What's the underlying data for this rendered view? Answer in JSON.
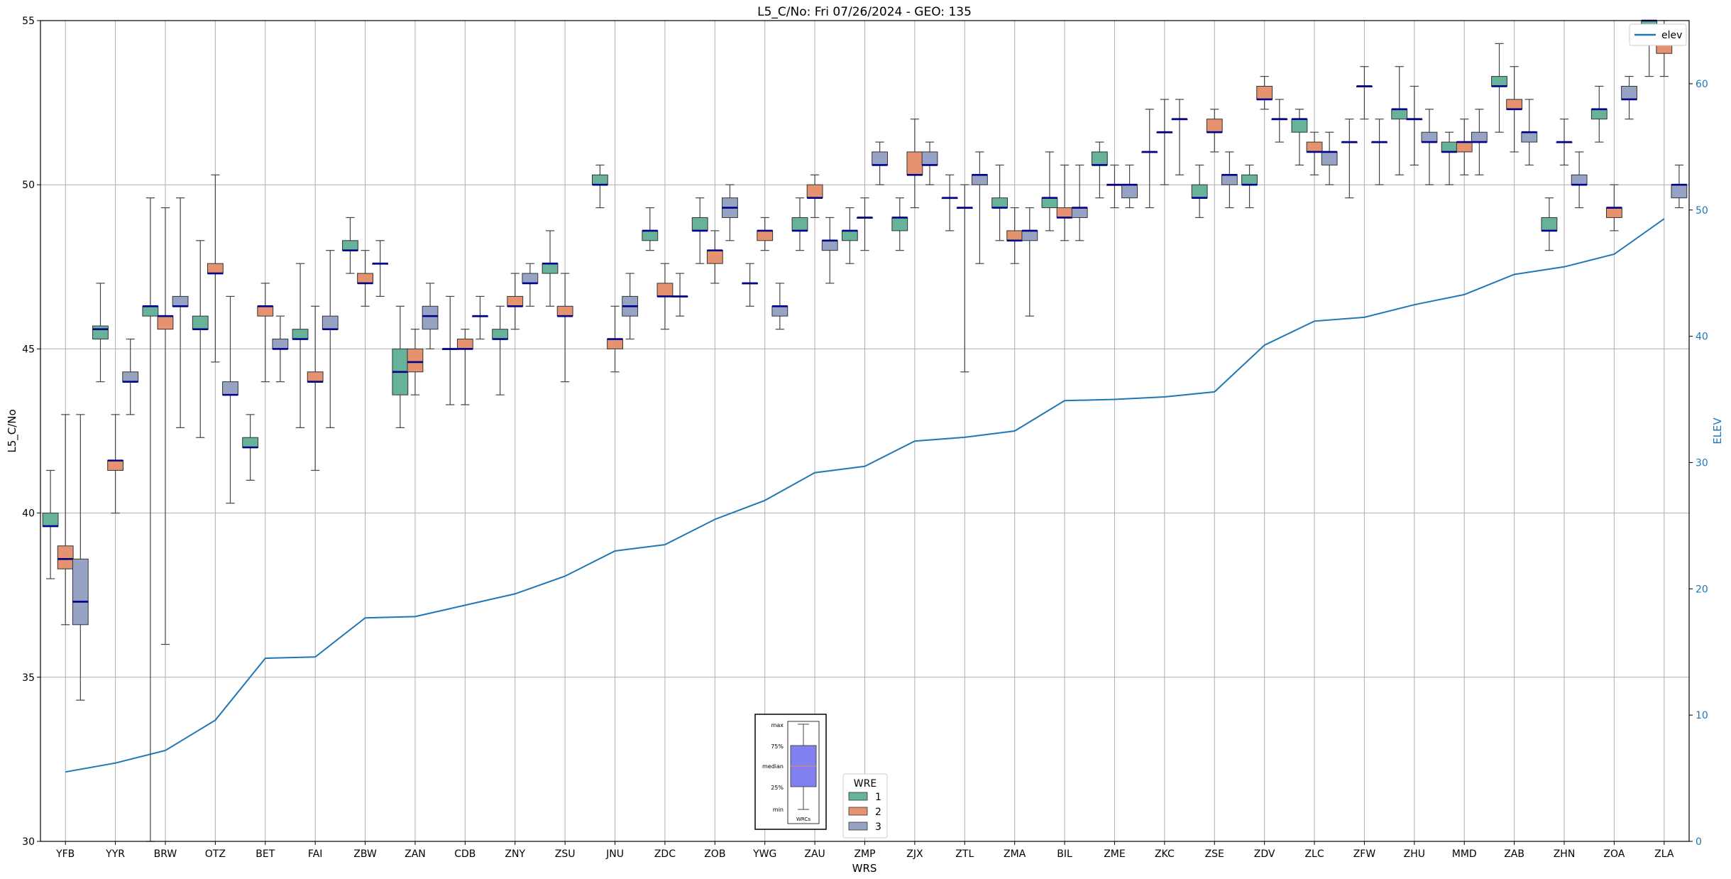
{
  "chart_data": {
    "type": "boxplot",
    "title": "L5_C/No: Fri 07/26/2024 - GEO: 135",
    "xlabel": "WRS",
    "ylabel": "L5_C/No",
    "ylim": [
      30,
      55
    ],
    "yticks": [
      30,
      35,
      40,
      45,
      50,
      55
    ],
    "y2label": "ELEV",
    "y2lim": [
      0,
      65
    ],
    "y2ticks": [
      0,
      10,
      20,
      30,
      40,
      50,
      60
    ],
    "grid": true,
    "categories": [
      "YFB",
      "YYR",
      "BRW",
      "OTZ",
      "BET",
      "FAI",
      "ZBW",
      "ZAN",
      "CDB",
      "ZNY",
      "ZSU",
      "JNU",
      "ZDC",
      "ZOB",
      "YWG",
      "ZAU",
      "ZMP",
      "ZJX",
      "ZTL",
      "ZMA",
      "BIL",
      "ZME",
      "ZKC",
      "ZSE",
      "ZDV",
      "ZLC",
      "ZFW",
      "ZHU",
      "MMD",
      "ZAB",
      "ZHN",
      "ZOA",
      "ZLA"
    ],
    "wre_colors": {
      "1": "#66b399",
      "2": "#e59270",
      "3": "#97a3c4"
    },
    "boxes": [
      {
        "cat": "YFB",
        "wre": 1,
        "min": 38.0,
        "q1": 39.6,
        "med": 39.6,
        "q3": 40.0,
        "max": 41.3
      },
      {
        "cat": "YFB",
        "wre": 2,
        "min": 36.6,
        "q1": 38.3,
        "med": 38.6,
        "q3": 39.0,
        "max": 43.0
      },
      {
        "cat": "YFB",
        "wre": 3,
        "min": 34.3,
        "q1": 36.6,
        "med": 37.3,
        "q3": 38.6,
        "max": 43.0
      },
      {
        "cat": "YYR",
        "wre": 1,
        "min": 44.0,
        "q1": 45.3,
        "med": 45.6,
        "q3": 45.7,
        "max": 47.0
      },
      {
        "cat": "YYR",
        "wre": 2,
        "min": 40.0,
        "q1": 41.3,
        "med": 41.6,
        "q3": 41.6,
        "max": 43.0
      },
      {
        "cat": "YYR",
        "wre": 3,
        "min": 43.0,
        "q1": 44.0,
        "med": 44.0,
        "q3": 44.3,
        "max": 45.3
      },
      {
        "cat": "BRW",
        "wre": 1,
        "min": 30.0,
        "q1": 46.0,
        "med": 46.3,
        "q3": 46.3,
        "max": 49.6
      },
      {
        "cat": "BRW",
        "wre": 2,
        "min": 36.0,
        "q1": 45.6,
        "med": 46.0,
        "q3": 46.0,
        "max": 49.3
      },
      {
        "cat": "BRW",
        "wre": 3,
        "min": 42.6,
        "q1": 46.3,
        "med": 46.3,
        "q3": 46.6,
        "max": 49.6
      },
      {
        "cat": "OTZ",
        "wre": 1,
        "min": 42.3,
        "q1": 45.6,
        "med": 45.6,
        "q3": 46.0,
        "max": 48.3
      },
      {
        "cat": "OTZ",
        "wre": 2,
        "min": 44.6,
        "q1": 47.3,
        "med": 47.3,
        "q3": 47.6,
        "max": 50.3
      },
      {
        "cat": "OTZ",
        "wre": 3,
        "min": 40.3,
        "q1": 43.6,
        "med": 43.6,
        "q3": 44.0,
        "max": 46.6
      },
      {
        "cat": "BET",
        "wre": 1,
        "min": 41.0,
        "q1": 42.0,
        "med": 42.0,
        "q3": 42.3,
        "max": 43.0
      },
      {
        "cat": "BET",
        "wre": 2,
        "min": 44.0,
        "q1": 46.0,
        "med": 46.3,
        "q3": 46.3,
        "max": 47.0
      },
      {
        "cat": "BET",
        "wre": 3,
        "min": 44.0,
        "q1": 45.0,
        "med": 45.0,
        "q3": 45.3,
        "max": 46.0
      },
      {
        "cat": "FAI",
        "wre": 1,
        "min": 42.6,
        "q1": 45.3,
        "med": 45.3,
        "q3": 45.6,
        "max": 47.6
      },
      {
        "cat": "FAI",
        "wre": 2,
        "min": 41.3,
        "q1": 44.0,
        "med": 44.0,
        "q3": 44.3,
        "max": 46.3
      },
      {
        "cat": "FAI",
        "wre": 3,
        "min": 42.6,
        "q1": 45.6,
        "med": 45.6,
        "q3": 46.0,
        "max": 48.0
      },
      {
        "cat": "ZBW",
        "wre": 1,
        "min": 47.3,
        "q1": 48.0,
        "med": 48.0,
        "q3": 48.3,
        "max": 49.0
      },
      {
        "cat": "ZBW",
        "wre": 2,
        "min": 46.3,
        "q1": 47.0,
        "med": 47.0,
        "q3": 47.3,
        "max": 48.0
      },
      {
        "cat": "ZBW",
        "wre": 3,
        "min": 46.6,
        "q1": 47.6,
        "med": 47.6,
        "q3": 47.6,
        "max": 48.3
      },
      {
        "cat": "ZAN",
        "wre": 1,
        "min": 42.6,
        "q1": 43.6,
        "med": 44.3,
        "q3": 45.0,
        "max": 46.3
      },
      {
        "cat": "ZAN",
        "wre": 2,
        "min": 43.6,
        "q1": 44.3,
        "med": 44.6,
        "q3": 45.0,
        "max": 45.6
      },
      {
        "cat": "ZAN",
        "wre": 3,
        "min": 45.0,
        "q1": 45.6,
        "med": 46.0,
        "q3": 46.3,
        "max": 47.0
      },
      {
        "cat": "CDB",
        "wre": 1,
        "min": 43.3,
        "q1": 45.0,
        "med": 45.0,
        "q3": 45.0,
        "max": 46.6
      },
      {
        "cat": "CDB",
        "wre": 2,
        "min": 43.3,
        "q1": 45.0,
        "med": 45.0,
        "q3": 45.3,
        "max": 45.6
      },
      {
        "cat": "CDB",
        "wre": 3,
        "min": 45.3,
        "q1": 46.0,
        "med": 46.0,
        "q3": 46.0,
        "max": 46.6
      },
      {
        "cat": "ZNY",
        "wre": 1,
        "min": 43.6,
        "q1": 45.3,
        "med": 45.3,
        "q3": 45.6,
        "max": 46.3
      },
      {
        "cat": "ZNY",
        "wre": 2,
        "min": 45.6,
        "q1": 46.3,
        "med": 46.3,
        "q3": 46.6,
        "max": 47.3
      },
      {
        "cat": "ZNY",
        "wre": 3,
        "min": 46.3,
        "q1": 47.0,
        "med": 47.0,
        "q3": 47.3,
        "max": 47.6
      },
      {
        "cat": "ZSU",
        "wre": 1,
        "min": 46.3,
        "q1": 47.3,
        "med": 47.6,
        "q3": 47.6,
        "max": 48.6
      },
      {
        "cat": "ZSU",
        "wre": 2,
        "min": 44.0,
        "q1": 46.0,
        "med": 46.0,
        "q3": 46.3,
        "max": 47.3
      },
      {
        "cat": "JNU",
        "wre": 1,
        "min": 49.3,
        "q1": 50.0,
        "med": 50.0,
        "q3": 50.3,
        "max": 50.6
      },
      {
        "cat": "JNU",
        "wre": 2,
        "min": 44.3,
        "q1": 45.0,
        "med": 45.3,
        "q3": 45.3,
        "max": 46.3
      },
      {
        "cat": "JNU",
        "wre": 3,
        "min": 45.3,
        "q1": 46.0,
        "med": 46.3,
        "q3": 46.6,
        "max": 47.3
      },
      {
        "cat": "ZDC",
        "wre": 1,
        "min": 48.0,
        "q1": 48.3,
        "med": 48.6,
        "q3": 48.6,
        "max": 49.3
      },
      {
        "cat": "ZDC",
        "wre": 2,
        "min": 45.6,
        "q1": 46.6,
        "med": 46.6,
        "q3": 47.0,
        "max": 47.6
      },
      {
        "cat": "ZDC",
        "wre": 3,
        "min": 46.0,
        "q1": 46.6,
        "med": 46.6,
        "q3": 46.6,
        "max": 47.3
      },
      {
        "cat": "ZOB",
        "wre": 1,
        "min": 47.6,
        "q1": 48.6,
        "med": 48.6,
        "q3": 49.0,
        "max": 49.6
      },
      {
        "cat": "ZOB",
        "wre": 2,
        "min": 47.0,
        "q1": 47.6,
        "med": 48.0,
        "q3": 48.0,
        "max": 48.6
      },
      {
        "cat": "ZOB",
        "wre": 3,
        "min": 48.3,
        "q1": 49.0,
        "med": 49.3,
        "q3": 49.6,
        "max": 50.0
      },
      {
        "cat": "YWG",
        "wre": 1,
        "min": 46.3,
        "q1": 47.0,
        "med": 47.0,
        "q3": 47.0,
        "max": 47.6
      },
      {
        "cat": "YWG",
        "wre": 2,
        "min": 48.0,
        "q1": 48.3,
        "med": 48.6,
        "q3": 48.6,
        "max": 49.0
      },
      {
        "cat": "YWG",
        "wre": 3,
        "min": 45.6,
        "q1": 46.0,
        "med": 46.3,
        "q3": 46.3,
        "max": 47.0
      },
      {
        "cat": "ZAU",
        "wre": 1,
        "min": 48.0,
        "q1": 48.6,
        "med": 48.6,
        "q3": 49.0,
        "max": 49.6
      },
      {
        "cat": "ZAU",
        "wre": 2,
        "min": 49.0,
        "q1": 49.6,
        "med": 49.6,
        "q3": 50.0,
        "max": 50.3
      },
      {
        "cat": "ZAU",
        "wre": 3,
        "min": 47.0,
        "q1": 48.0,
        "med": 48.3,
        "q3": 48.3,
        "max": 49.0
      },
      {
        "cat": "ZMP",
        "wre": 1,
        "min": 47.6,
        "q1": 48.3,
        "med": 48.6,
        "q3": 48.6,
        "max": 49.3
      },
      {
        "cat": "ZMP",
        "wre": 2,
        "min": 48.0,
        "q1": 49.0,
        "med": 49.0,
        "q3": 49.0,
        "max": 49.6
      },
      {
        "cat": "ZMP",
        "wre": 3,
        "min": 50.0,
        "q1": 50.6,
        "med": 50.6,
        "q3": 51.0,
        "max": 51.3
      },
      {
        "cat": "ZJX",
        "wre": 1,
        "min": 48.0,
        "q1": 48.6,
        "med": 49.0,
        "q3": 49.0,
        "max": 49.6
      },
      {
        "cat": "ZJX",
        "wre": 2,
        "min": 49.3,
        "q1": 50.3,
        "med": 50.3,
        "q3": 51.0,
        "max": 52.0
      },
      {
        "cat": "ZJX",
        "wre": 3,
        "min": 50.0,
        "q1": 50.6,
        "med": 50.6,
        "q3": 51.0,
        "max": 51.3
      },
      {
        "cat": "ZTL",
        "wre": 1,
        "min": 48.6,
        "q1": 49.6,
        "med": 49.6,
        "q3": 49.6,
        "max": 50.3
      },
      {
        "cat": "ZTL",
        "wre": 2,
        "min": 44.3,
        "q1": 49.3,
        "med": 49.3,
        "q3": 49.3,
        "max": 50.0
      },
      {
        "cat": "ZTL",
        "wre": 3,
        "min": 47.6,
        "q1": 50.0,
        "med": 50.3,
        "q3": 50.3,
        "max": 51.0
      },
      {
        "cat": "ZMA",
        "wre": 1,
        "min": 48.3,
        "q1": 49.3,
        "med": 49.3,
        "q3": 49.6,
        "max": 50.6
      },
      {
        "cat": "ZMA",
        "wre": 2,
        "min": 47.6,
        "q1": 48.3,
        "med": 48.3,
        "q3": 48.6,
        "max": 49.3
      },
      {
        "cat": "ZMA",
        "wre": 3,
        "min": 46.0,
        "q1": 48.3,
        "med": 48.6,
        "q3": 48.6,
        "max": 49.3
      },
      {
        "cat": "BIL",
        "wre": 1,
        "min": 48.6,
        "q1": 49.3,
        "med": 49.6,
        "q3": 49.6,
        "max": 51.0
      },
      {
        "cat": "BIL",
        "wre": 2,
        "min": 48.3,
        "q1": 49.0,
        "med": 49.0,
        "q3": 49.3,
        "max": 50.6
      },
      {
        "cat": "BIL",
        "wre": 3,
        "min": 48.3,
        "q1": 49.0,
        "med": 49.3,
        "q3": 49.3,
        "max": 50.6
      },
      {
        "cat": "ZME",
        "wre": 1,
        "min": 49.6,
        "q1": 50.6,
        "med": 50.6,
        "q3": 51.0,
        "max": 51.3
      },
      {
        "cat": "ZME",
        "wre": 2,
        "min": 49.3,
        "q1": 50.0,
        "med": 50.0,
        "q3": 50.0,
        "max": 50.6
      },
      {
        "cat": "ZME",
        "wre": 3,
        "min": 49.3,
        "q1": 49.6,
        "med": 50.0,
        "q3": 50.0,
        "max": 50.6
      },
      {
        "cat": "ZKC",
        "wre": 1,
        "min": 49.3,
        "q1": 51.0,
        "med": 51.0,
        "q3": 51.0,
        "max": 52.3
      },
      {
        "cat": "ZKC",
        "wre": 2,
        "min": 50.0,
        "q1": 51.6,
        "med": 51.6,
        "q3": 51.6,
        "max": 52.6
      },
      {
        "cat": "ZKC",
        "wre": 3,
        "min": 50.3,
        "q1": 52.0,
        "med": 52.0,
        "q3": 52.0,
        "max": 52.6
      },
      {
        "cat": "ZSE",
        "wre": 1,
        "min": 49.0,
        "q1": 49.6,
        "med": 49.6,
        "q3": 50.0,
        "max": 50.6
      },
      {
        "cat": "ZSE",
        "wre": 2,
        "min": 51.0,
        "q1": 51.6,
        "med": 51.6,
        "q3": 52.0,
        "max": 52.3
      },
      {
        "cat": "ZSE",
        "wre": 3,
        "min": 49.3,
        "q1": 50.0,
        "med": 50.3,
        "q3": 50.3,
        "max": 51.0
      },
      {
        "cat": "ZDV",
        "wre": 1,
        "min": 49.3,
        "q1": 50.0,
        "med": 50.0,
        "q3": 50.3,
        "max": 50.6
      },
      {
        "cat": "ZDV",
        "wre": 2,
        "min": 52.3,
        "q1": 52.6,
        "med": 52.6,
        "q3": 53.0,
        "max": 53.3
      },
      {
        "cat": "ZDV",
        "wre": 3,
        "min": 51.3,
        "q1": 52.0,
        "med": 52.0,
        "q3": 52.0,
        "max": 52.6
      },
      {
        "cat": "ZLC",
        "wre": 1,
        "min": 50.6,
        "q1": 51.6,
        "med": 52.0,
        "q3": 52.0,
        "max": 52.3
      },
      {
        "cat": "ZLC",
        "wre": 2,
        "min": 50.3,
        "q1": 51.0,
        "med": 51.0,
        "q3": 51.3,
        "max": 51.6
      },
      {
        "cat": "ZLC",
        "wre": 3,
        "min": 50.0,
        "q1": 50.6,
        "med": 51.0,
        "q3": 51.0,
        "max": 51.6
      },
      {
        "cat": "ZFW",
        "wre": 1,
        "min": 49.6,
        "q1": 51.3,
        "med": 51.3,
        "q3": 51.3,
        "max": 52.0
      },
      {
        "cat": "ZFW",
        "wre": 2,
        "min": 52.0,
        "q1": 53.0,
        "med": 53.0,
        "q3": 53.0,
        "max": 53.6
      },
      {
        "cat": "ZFW",
        "wre": 3,
        "min": 50.0,
        "q1": 51.3,
        "med": 51.3,
        "q3": 51.3,
        "max": 52.0
      },
      {
        "cat": "ZHU",
        "wre": 1,
        "min": 50.3,
        "q1": 52.0,
        "med": 52.3,
        "q3": 52.3,
        "max": 53.6
      },
      {
        "cat": "ZHU",
        "wre": 2,
        "min": 50.6,
        "q1": 52.0,
        "med": 52.0,
        "q3": 52.0,
        "max": 53.0
      },
      {
        "cat": "ZHU",
        "wre": 3,
        "min": 50.0,
        "q1": 51.3,
        "med": 51.3,
        "q3": 51.6,
        "max": 52.3
      },
      {
        "cat": "MMD",
        "wre": 1,
        "min": 50.0,
        "q1": 51.0,
        "med": 51.0,
        "q3": 51.3,
        "max": 51.6
      },
      {
        "cat": "MMD",
        "wre": 2,
        "min": 50.3,
        "q1": 51.0,
        "med": 51.3,
        "q3": 51.3,
        "max": 52.0
      },
      {
        "cat": "MMD",
        "wre": 3,
        "min": 50.3,
        "q1": 51.3,
        "med": 51.3,
        "q3": 51.6,
        "max": 52.3
      },
      {
        "cat": "ZAB",
        "wre": 1,
        "min": 51.6,
        "q1": 53.0,
        "med": 53.0,
        "q3": 53.3,
        "max": 54.3
      },
      {
        "cat": "ZAB",
        "wre": 2,
        "min": 51.0,
        "q1": 52.3,
        "med": 52.3,
        "q3": 52.6,
        "max": 53.6
      },
      {
        "cat": "ZAB",
        "wre": 3,
        "min": 50.6,
        "q1": 51.3,
        "med": 51.6,
        "q3": 51.6,
        "max": 52.6
      },
      {
        "cat": "ZHN",
        "wre": 1,
        "min": 48.0,
        "q1": 48.6,
        "med": 48.6,
        "q3": 49.0,
        "max": 49.6
      },
      {
        "cat": "ZHN",
        "wre": 2,
        "min": 50.6,
        "q1": 51.3,
        "med": 51.3,
        "q3": 51.3,
        "max": 52.0
      },
      {
        "cat": "ZHN",
        "wre": 3,
        "min": 49.3,
        "q1": 50.0,
        "med": 50.0,
        "q3": 50.3,
        "max": 51.0
      },
      {
        "cat": "ZOA",
        "wre": 1,
        "min": 51.3,
        "q1": 52.0,
        "med": 52.3,
        "q3": 52.3,
        "max": 53.0
      },
      {
        "cat": "ZOA",
        "wre": 2,
        "min": 48.6,
        "q1": 49.0,
        "med": 49.3,
        "q3": 49.3,
        "max": 50.0
      },
      {
        "cat": "ZOA",
        "wre": 3,
        "min": 52.0,
        "q1": 52.6,
        "med": 52.6,
        "q3": 53.0,
        "max": 53.3
      },
      {
        "cat": "ZLA",
        "wre": 1,
        "min": 53.3,
        "q1": 54.6,
        "med": 55.0,
        "q3": 55.0,
        "max": 55.0
      },
      {
        "cat": "ZLA",
        "wre": 2,
        "min": 53.3,
        "q1": 54.0,
        "med": 54.3,
        "q3": 54.3,
        "max": 55.0
      },
      {
        "cat": "ZLA",
        "wre": 3,
        "min": 49.3,
        "q1": 49.6,
        "med": 50.0,
        "q3": 50.0,
        "max": 50.6
      }
    ],
    "elev_series": {
      "name": "elev",
      "color": "#1f77b4",
      "values": [
        5.5,
        6.2,
        7.2,
        9.6,
        14.5,
        14.6,
        17.7,
        17.8,
        18.7,
        19.6,
        21.0,
        23.0,
        23.5,
        25.5,
        27.0,
        29.2,
        29.7,
        31.7,
        32.0,
        32.5,
        34.9,
        35.0,
        35.2,
        35.6,
        39.3,
        41.2,
        41.5,
        42.5,
        43.3,
        44.9,
        45.5,
        46.5,
        49.3
      ]
    },
    "legend_wre": {
      "title": "WRE",
      "entries": [
        {
          "label": "1",
          "color": "#66b399"
        },
        {
          "label": "2",
          "color": "#e59270"
        },
        {
          "label": "3",
          "color": "#97a3c4"
        }
      ]
    },
    "legend_elev": {
      "label": "elev"
    },
    "box_key": {
      "labels": [
        "max",
        "75%",
        "median",
        "25%",
        "min"
      ],
      "caption": "WRCs",
      "color": "#8080f0"
    }
  }
}
